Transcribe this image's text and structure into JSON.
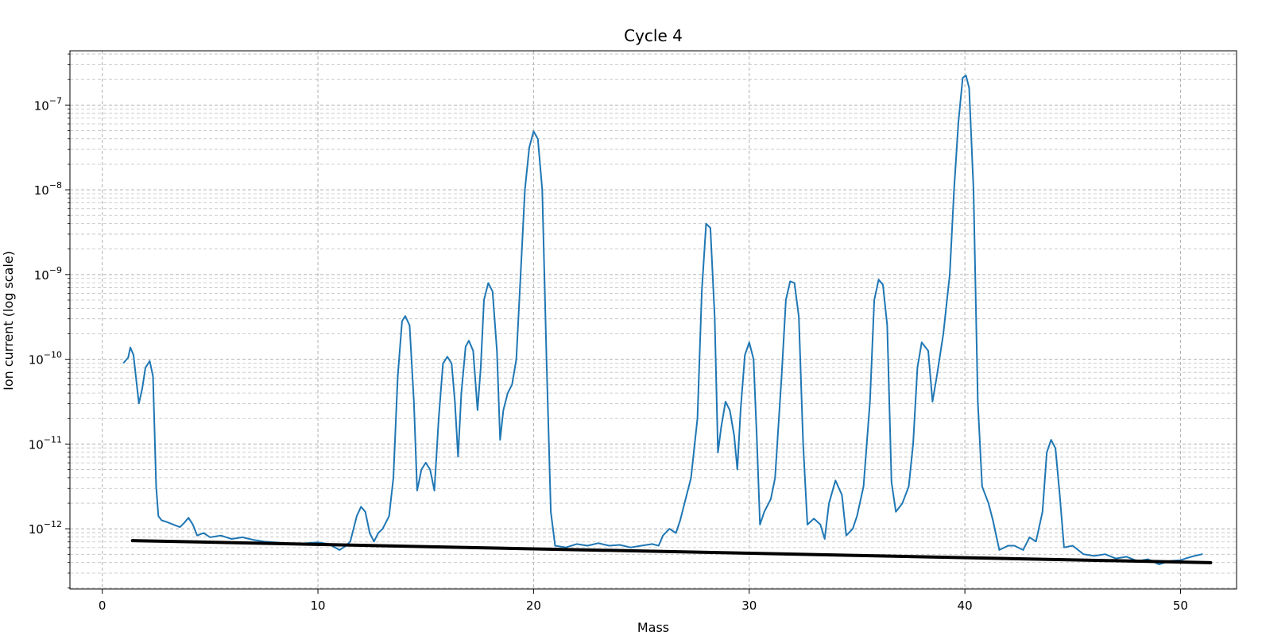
{
  "chart_data": {
    "type": "line",
    "title": "Cycle 4",
    "xlabel": "Mass",
    "ylabel": "Ion current (log scale)",
    "y_scale": "log",
    "grid": "major and minor, dashed",
    "xlim": [
      -1.5,
      52.6
    ],
    "ylim_log10": [
      -12.71,
      -6.36
    ],
    "xticks": [
      0,
      10,
      20,
      30,
      40,
      50
    ],
    "ytick_exponents": [
      -12,
      -11,
      -10,
      -9,
      -8,
      -7
    ],
    "colors": {
      "signal": "#1f77b4",
      "baseline": "#000000"
    },
    "series": [
      {
        "id": "signal",
        "color": "#1f77b4",
        "points_log10": [
          [
            1.0,
            -10.04
          ],
          [
            1.2,
            -9.98
          ],
          [
            1.3,
            -9.86
          ],
          [
            1.45,
            -9.95
          ],
          [
            1.6,
            -10.3
          ],
          [
            1.7,
            -10.52
          ],
          [
            1.85,
            -10.35
          ],
          [
            2.0,
            -10.1
          ],
          [
            2.2,
            -10.02
          ],
          [
            2.35,
            -10.2
          ],
          [
            2.5,
            -11.5
          ],
          [
            2.6,
            -11.85
          ],
          [
            2.75,
            -11.9
          ],
          [
            3.0,
            -11.92
          ],
          [
            3.3,
            -11.95
          ],
          [
            3.6,
            -11.98
          ],
          [
            3.8,
            -11.93
          ],
          [
            4.0,
            -11.87
          ],
          [
            4.2,
            -11.95
          ],
          [
            4.4,
            -12.08
          ],
          [
            4.7,
            -12.05
          ],
          [
            5.0,
            -12.1
          ],
          [
            5.5,
            -12.08
          ],
          [
            6.0,
            -12.12
          ],
          [
            6.5,
            -12.1
          ],
          [
            7.0,
            -12.13
          ],
          [
            7.5,
            -12.15
          ],
          [
            8.0,
            -12.16
          ],
          [
            8.5,
            -12.17
          ],
          [
            9.0,
            -12.18
          ],
          [
            9.5,
            -12.17
          ],
          [
            10.0,
            -12.16
          ],
          [
            10.5,
            -12.18
          ],
          [
            11.0,
            -12.25
          ],
          [
            11.3,
            -12.2
          ],
          [
            11.5,
            -12.15
          ],
          [
            11.8,
            -11.85
          ],
          [
            12.0,
            -11.74
          ],
          [
            12.2,
            -11.8
          ],
          [
            12.4,
            -12.05
          ],
          [
            12.6,
            -12.15
          ],
          [
            12.8,
            -12.05
          ],
          [
            13.0,
            -12.0
          ],
          [
            13.3,
            -11.85
          ],
          [
            13.5,
            -11.4
          ],
          [
            13.7,
            -10.2
          ],
          [
            13.9,
            -9.55
          ],
          [
            14.05,
            -9.49
          ],
          [
            14.25,
            -9.6
          ],
          [
            14.45,
            -10.5
          ],
          [
            14.6,
            -11.55
          ],
          [
            14.8,
            -11.3
          ],
          [
            15.0,
            -11.22
          ],
          [
            15.2,
            -11.3
          ],
          [
            15.4,
            -11.55
          ],
          [
            15.6,
            -10.7
          ],
          [
            15.8,
            -10.05
          ],
          [
            16.0,
            -9.97
          ],
          [
            16.2,
            -10.05
          ],
          [
            16.35,
            -10.5
          ],
          [
            16.5,
            -11.15
          ],
          [
            16.65,
            -10.4
          ],
          [
            16.85,
            -9.85
          ],
          [
            17.0,
            -9.78
          ],
          [
            17.2,
            -9.9
          ],
          [
            17.4,
            -10.6
          ],
          [
            17.55,
            -10.1
          ],
          [
            17.7,
            -9.3
          ],
          [
            17.9,
            -9.1
          ],
          [
            18.1,
            -9.2
          ],
          [
            18.3,
            -9.9
          ],
          [
            18.45,
            -10.95
          ],
          [
            18.6,
            -10.6
          ],
          [
            18.8,
            -10.4
          ],
          [
            19.0,
            -10.3
          ],
          [
            19.2,
            -10.0
          ],
          [
            19.4,
            -9.0
          ],
          [
            19.6,
            -8.0
          ],
          [
            19.8,
            -7.5
          ],
          [
            20.0,
            -7.31
          ],
          [
            20.2,
            -7.4
          ],
          [
            20.4,
            -8.0
          ],
          [
            20.6,
            -10.0
          ],
          [
            20.8,
            -11.8
          ],
          [
            21.0,
            -12.2
          ],
          [
            21.5,
            -12.22
          ],
          [
            22.0,
            -12.18
          ],
          [
            22.5,
            -12.2
          ],
          [
            23.0,
            -12.17
          ],
          [
            23.5,
            -12.2
          ],
          [
            24.0,
            -12.19
          ],
          [
            24.5,
            -12.22
          ],
          [
            25.0,
            -12.2
          ],
          [
            25.5,
            -12.18
          ],
          [
            25.8,
            -12.2
          ],
          [
            26.0,
            -12.08
          ],
          [
            26.3,
            -12.0
          ],
          [
            26.6,
            -12.05
          ],
          [
            26.8,
            -11.9
          ],
          [
            27.0,
            -11.7
          ],
          [
            27.3,
            -11.4
          ],
          [
            27.6,
            -10.7
          ],
          [
            27.8,
            -9.2
          ],
          [
            28.0,
            -8.4
          ],
          [
            28.2,
            -8.45
          ],
          [
            28.4,
            -9.5
          ],
          [
            28.55,
            -11.1
          ],
          [
            28.7,
            -10.8
          ],
          [
            28.9,
            -10.5
          ],
          [
            29.1,
            -10.6
          ],
          [
            29.3,
            -10.9
          ],
          [
            29.45,
            -11.3
          ],
          [
            29.6,
            -10.6
          ],
          [
            29.8,
            -9.95
          ],
          [
            30.0,
            -9.8
          ],
          [
            30.2,
            -10.0
          ],
          [
            30.35,
            -10.9
          ],
          [
            30.5,
            -11.95
          ],
          [
            30.7,
            -11.8
          ],
          [
            31.0,
            -11.65
          ],
          [
            31.2,
            -11.4
          ],
          [
            31.5,
            -10.2
          ],
          [
            31.7,
            -9.3
          ],
          [
            31.9,
            -9.08
          ],
          [
            32.1,
            -9.1
          ],
          [
            32.3,
            -9.5
          ],
          [
            32.5,
            -11.0
          ],
          [
            32.7,
            -11.95
          ],
          [
            33.0,
            -11.88
          ],
          [
            33.3,
            -11.95
          ],
          [
            33.5,
            -12.12
          ],
          [
            33.7,
            -11.7
          ],
          [
            34.0,
            -11.43
          ],
          [
            34.3,
            -11.6
          ],
          [
            34.5,
            -12.08
          ],
          [
            34.8,
            -12.0
          ],
          [
            35.0,
            -11.85
          ],
          [
            35.3,
            -11.5
          ],
          [
            35.6,
            -10.5
          ],
          [
            35.8,
            -9.3
          ],
          [
            36.0,
            -9.06
          ],
          [
            36.2,
            -9.12
          ],
          [
            36.4,
            -9.6
          ],
          [
            36.6,
            -11.45
          ],
          [
            36.8,
            -11.8
          ],
          [
            37.1,
            -11.7
          ],
          [
            37.4,
            -11.5
          ],
          [
            37.6,
            -11.0
          ],
          [
            37.8,
            -10.1
          ],
          [
            38.0,
            -9.8
          ],
          [
            38.3,
            -9.9
          ],
          [
            38.5,
            -10.5
          ],
          [
            38.7,
            -10.2
          ],
          [
            39.0,
            -9.7
          ],
          [
            39.3,
            -9.0
          ],
          [
            39.5,
            -8.0
          ],
          [
            39.7,
            -7.2
          ],
          [
            39.9,
            -6.68
          ],
          [
            40.05,
            -6.65
          ],
          [
            40.2,
            -6.8
          ],
          [
            40.4,
            -8.0
          ],
          [
            40.6,
            -10.5
          ],
          [
            40.8,
            -11.5
          ],
          [
            41.1,
            -11.7
          ],
          [
            41.3,
            -11.9
          ],
          [
            41.6,
            -12.25
          ],
          [
            42.0,
            -12.2
          ],
          [
            42.3,
            -12.2
          ],
          [
            42.7,
            -12.25
          ],
          [
            43.0,
            -12.1
          ],
          [
            43.3,
            -12.15
          ],
          [
            43.6,
            -11.8
          ],
          [
            43.8,
            -11.1
          ],
          [
            44.0,
            -10.95
          ],
          [
            44.2,
            -11.05
          ],
          [
            44.4,
            -11.6
          ],
          [
            44.6,
            -12.22
          ],
          [
            45.0,
            -12.2
          ],
          [
            45.5,
            -12.3
          ],
          [
            46.0,
            -12.32
          ],
          [
            46.5,
            -12.3
          ],
          [
            47.0,
            -12.35
          ],
          [
            47.5,
            -12.33
          ],
          [
            48.0,
            -12.38
          ],
          [
            48.5,
            -12.36
          ],
          [
            49.0,
            -12.42
          ],
          [
            49.5,
            -12.38
          ],
          [
            50.0,
            -12.37
          ],
          [
            50.5,
            -12.33
          ],
          [
            51.0,
            -12.3
          ]
        ]
      },
      {
        "id": "baseline",
        "color": "#000000",
        "points_log10": [
          [
            1.4,
            -12.14
          ],
          [
            51.4,
            -12.4
          ]
        ]
      }
    ]
  }
}
